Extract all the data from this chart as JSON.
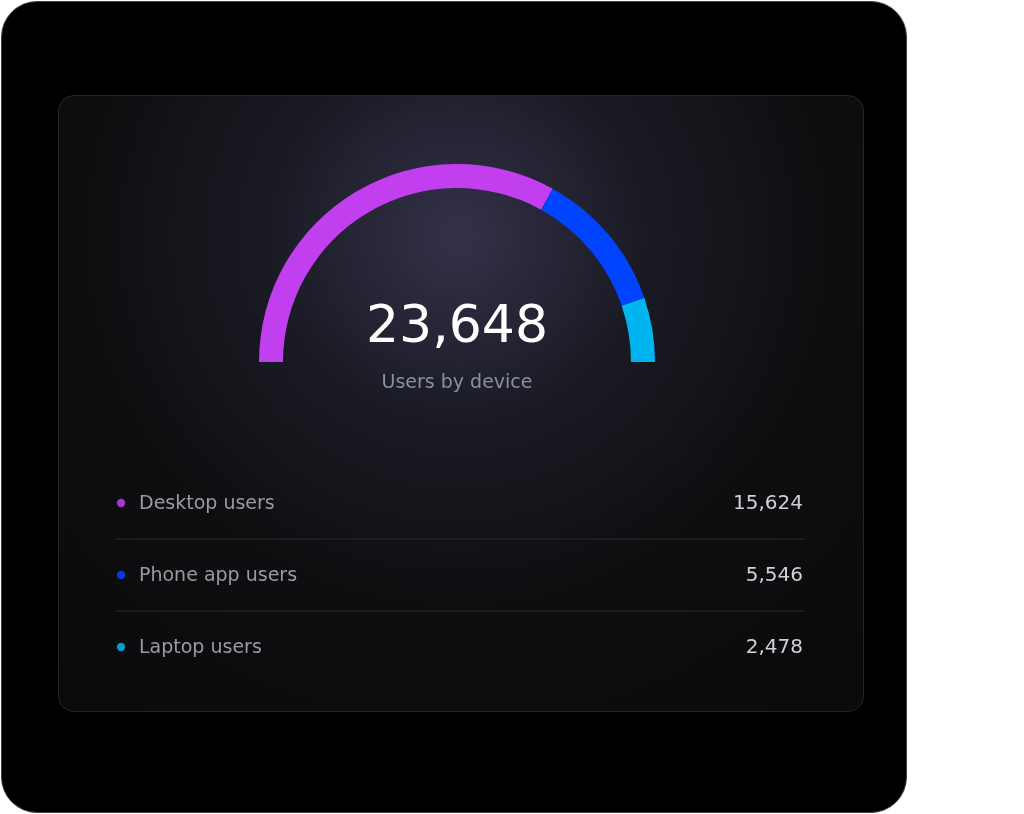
{
  "chart_data": {
    "type": "donut",
    "title": "Users by device",
    "annotations": [
      "23,648"
    ],
    "categories": [
      "Desktop users",
      "Phone app users",
      "Laptop users"
    ],
    "values": [
      15624,
      5546,
      2478
    ],
    "colors": [
      "#c23ff0",
      "#0044ff",
      "#00b4f0"
    ],
    "value_labels": [
      "15,624",
      "5,546",
      "2,478"
    ],
    "legend": "bottom"
  }
}
